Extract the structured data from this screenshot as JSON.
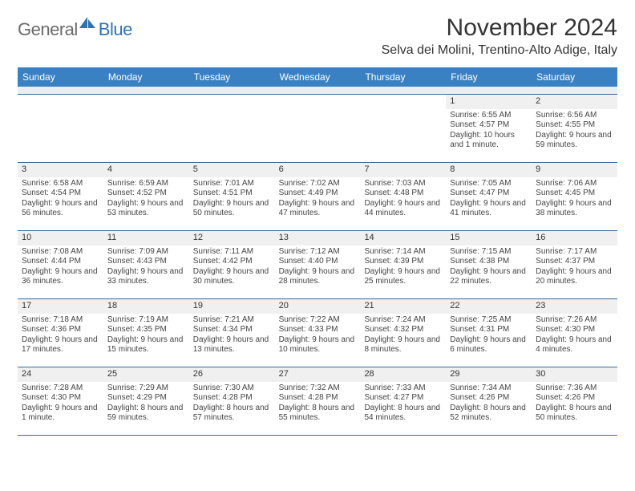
{
  "brand": {
    "part1": "General",
    "part2": "Blue"
  },
  "title": "November 2024",
  "location": "Selva dei Molini, Trentino-Alto Adige, Italy",
  "colors": {
    "header_bg": "#3a81c4",
    "header_text": "#ffffff",
    "spacer_bg": "#e8eef3",
    "row_border": "#3a6a9a",
    "daynum_bg": "#f0f0f0",
    "body_text": "#444444",
    "logo_gray": "#6a6a6a",
    "logo_blue": "#2d72b5"
  },
  "day_names": [
    "Sunday",
    "Monday",
    "Tuesday",
    "Wednesday",
    "Thursday",
    "Friday",
    "Saturday"
  ],
  "weeks": [
    [
      {
        "n": "",
        "sr": "",
        "ss": "",
        "dl": ""
      },
      {
        "n": "",
        "sr": "",
        "ss": "",
        "dl": ""
      },
      {
        "n": "",
        "sr": "",
        "ss": "",
        "dl": ""
      },
      {
        "n": "",
        "sr": "",
        "ss": "",
        "dl": ""
      },
      {
        "n": "",
        "sr": "",
        "ss": "",
        "dl": ""
      },
      {
        "n": "1",
        "sr": "Sunrise: 6:55 AM",
        "ss": "Sunset: 4:57 PM",
        "dl": "Daylight: 10 hours and 1 minute."
      },
      {
        "n": "2",
        "sr": "Sunrise: 6:56 AM",
        "ss": "Sunset: 4:55 PM",
        "dl": "Daylight: 9 hours and 59 minutes."
      }
    ],
    [
      {
        "n": "3",
        "sr": "Sunrise: 6:58 AM",
        "ss": "Sunset: 4:54 PM",
        "dl": "Daylight: 9 hours and 56 minutes."
      },
      {
        "n": "4",
        "sr": "Sunrise: 6:59 AM",
        "ss": "Sunset: 4:52 PM",
        "dl": "Daylight: 9 hours and 53 minutes."
      },
      {
        "n": "5",
        "sr": "Sunrise: 7:01 AM",
        "ss": "Sunset: 4:51 PM",
        "dl": "Daylight: 9 hours and 50 minutes."
      },
      {
        "n": "6",
        "sr": "Sunrise: 7:02 AM",
        "ss": "Sunset: 4:49 PM",
        "dl": "Daylight: 9 hours and 47 minutes."
      },
      {
        "n": "7",
        "sr": "Sunrise: 7:03 AM",
        "ss": "Sunset: 4:48 PM",
        "dl": "Daylight: 9 hours and 44 minutes."
      },
      {
        "n": "8",
        "sr": "Sunrise: 7:05 AM",
        "ss": "Sunset: 4:47 PM",
        "dl": "Daylight: 9 hours and 41 minutes."
      },
      {
        "n": "9",
        "sr": "Sunrise: 7:06 AM",
        "ss": "Sunset: 4:45 PM",
        "dl": "Daylight: 9 hours and 38 minutes."
      }
    ],
    [
      {
        "n": "10",
        "sr": "Sunrise: 7:08 AM",
        "ss": "Sunset: 4:44 PM",
        "dl": "Daylight: 9 hours and 36 minutes."
      },
      {
        "n": "11",
        "sr": "Sunrise: 7:09 AM",
        "ss": "Sunset: 4:43 PM",
        "dl": "Daylight: 9 hours and 33 minutes."
      },
      {
        "n": "12",
        "sr": "Sunrise: 7:11 AM",
        "ss": "Sunset: 4:42 PM",
        "dl": "Daylight: 9 hours and 30 minutes."
      },
      {
        "n": "13",
        "sr": "Sunrise: 7:12 AM",
        "ss": "Sunset: 4:40 PM",
        "dl": "Daylight: 9 hours and 28 minutes."
      },
      {
        "n": "14",
        "sr": "Sunrise: 7:14 AM",
        "ss": "Sunset: 4:39 PM",
        "dl": "Daylight: 9 hours and 25 minutes."
      },
      {
        "n": "15",
        "sr": "Sunrise: 7:15 AM",
        "ss": "Sunset: 4:38 PM",
        "dl": "Daylight: 9 hours and 22 minutes."
      },
      {
        "n": "16",
        "sr": "Sunrise: 7:17 AM",
        "ss": "Sunset: 4:37 PM",
        "dl": "Daylight: 9 hours and 20 minutes."
      }
    ],
    [
      {
        "n": "17",
        "sr": "Sunrise: 7:18 AM",
        "ss": "Sunset: 4:36 PM",
        "dl": "Daylight: 9 hours and 17 minutes."
      },
      {
        "n": "18",
        "sr": "Sunrise: 7:19 AM",
        "ss": "Sunset: 4:35 PM",
        "dl": "Daylight: 9 hours and 15 minutes."
      },
      {
        "n": "19",
        "sr": "Sunrise: 7:21 AM",
        "ss": "Sunset: 4:34 PM",
        "dl": "Daylight: 9 hours and 13 minutes."
      },
      {
        "n": "20",
        "sr": "Sunrise: 7:22 AM",
        "ss": "Sunset: 4:33 PM",
        "dl": "Daylight: 9 hours and 10 minutes."
      },
      {
        "n": "21",
        "sr": "Sunrise: 7:24 AM",
        "ss": "Sunset: 4:32 PM",
        "dl": "Daylight: 9 hours and 8 minutes."
      },
      {
        "n": "22",
        "sr": "Sunrise: 7:25 AM",
        "ss": "Sunset: 4:31 PM",
        "dl": "Daylight: 9 hours and 6 minutes."
      },
      {
        "n": "23",
        "sr": "Sunrise: 7:26 AM",
        "ss": "Sunset: 4:30 PM",
        "dl": "Daylight: 9 hours and 4 minutes."
      }
    ],
    [
      {
        "n": "24",
        "sr": "Sunrise: 7:28 AM",
        "ss": "Sunset: 4:30 PM",
        "dl": "Daylight: 9 hours and 1 minute."
      },
      {
        "n": "25",
        "sr": "Sunrise: 7:29 AM",
        "ss": "Sunset: 4:29 PM",
        "dl": "Daylight: 8 hours and 59 minutes."
      },
      {
        "n": "26",
        "sr": "Sunrise: 7:30 AM",
        "ss": "Sunset: 4:28 PM",
        "dl": "Daylight: 8 hours and 57 minutes."
      },
      {
        "n": "27",
        "sr": "Sunrise: 7:32 AM",
        "ss": "Sunset: 4:28 PM",
        "dl": "Daylight: 8 hours and 55 minutes."
      },
      {
        "n": "28",
        "sr": "Sunrise: 7:33 AM",
        "ss": "Sunset: 4:27 PM",
        "dl": "Daylight: 8 hours and 54 minutes."
      },
      {
        "n": "29",
        "sr": "Sunrise: 7:34 AM",
        "ss": "Sunset: 4:26 PM",
        "dl": "Daylight: 8 hours and 52 minutes."
      },
      {
        "n": "30",
        "sr": "Sunrise: 7:36 AM",
        "ss": "Sunset: 4:26 PM",
        "dl": "Daylight: 8 hours and 50 minutes."
      }
    ]
  ]
}
